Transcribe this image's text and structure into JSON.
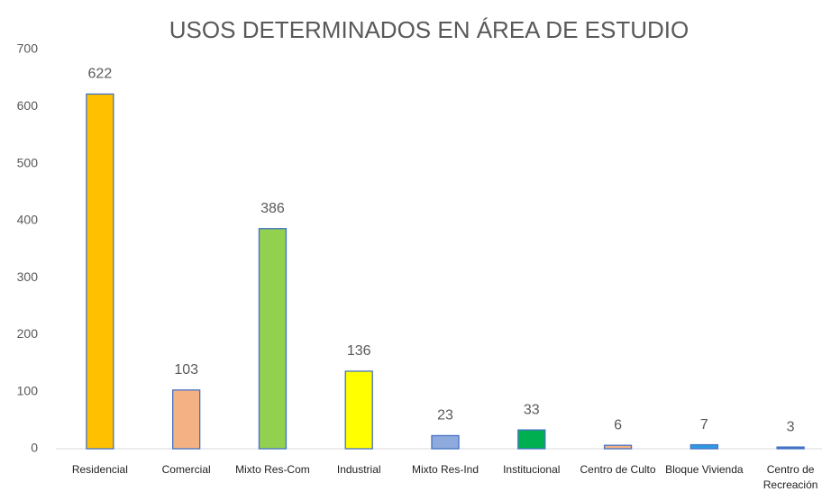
{
  "chart_data": {
    "type": "bar",
    "title": "USOS DETERMINADOS EN ÁREA DE ESTUDIO",
    "categories": [
      "Residencial",
      "Comercial",
      "Mixto Res-Com",
      "Industrial",
      "Mixto Res-Ind",
      "Institucional",
      "Centro de Culto",
      "Bloque Vivienda",
      "Centro de Recreación"
    ],
    "values": [
      622,
      103,
      386,
      136,
      23,
      33,
      6,
      7,
      3
    ],
    "colors": [
      "#FFC000",
      "#F4B183",
      "#92D050",
      "#FFFF00",
      "#8FAADC",
      "#00B050",
      "#F4B183",
      "#2E9BE6",
      "#4472C4"
    ],
    "ylim": [
      0,
      700
    ],
    "yticks": [
      0,
      100,
      200,
      300,
      400,
      500,
      600,
      700
    ],
    "grid": false
  }
}
